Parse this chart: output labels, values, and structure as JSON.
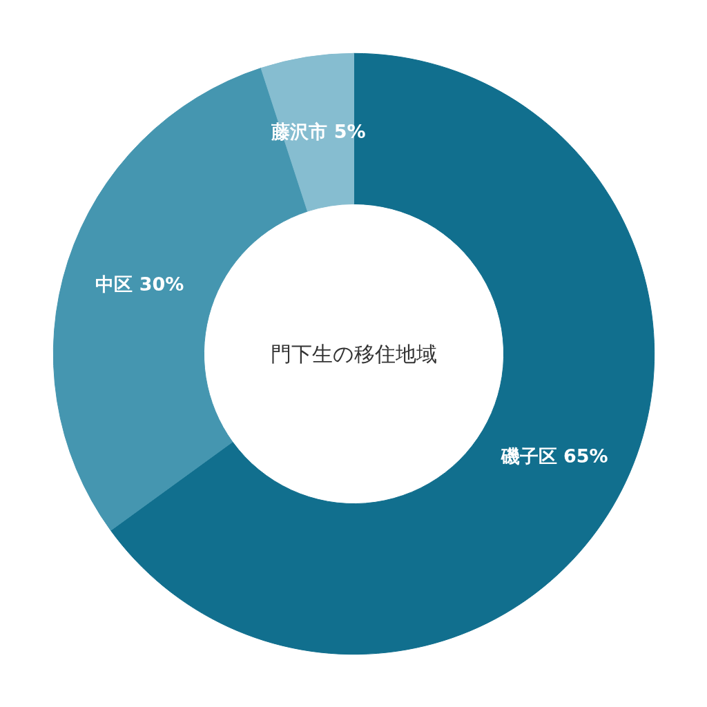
{
  "chart_data": {
    "type": "donut",
    "title": "門下生の移住地域",
    "categories": [
      "磯子区",
      "中区",
      "藤沢市"
    ],
    "values": [
      65,
      30,
      5
    ],
    "value_labels": [
      "65%",
      "30%",
      "5%"
    ],
    "colors": [
      "#116f8e",
      "#4596b0",
      "#86bdd0"
    ]
  }
}
